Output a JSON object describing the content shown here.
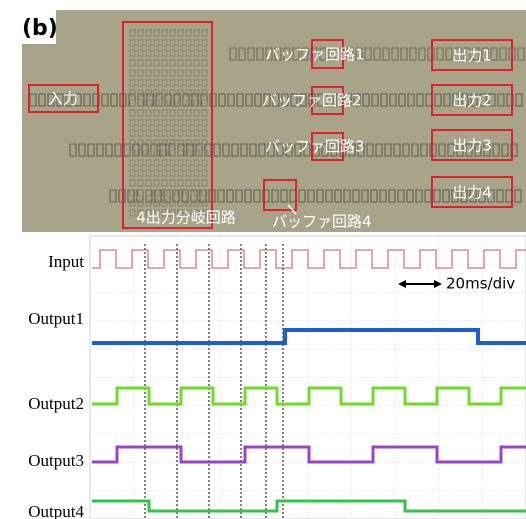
{
  "label": "(b)",
  "photo": {
    "input": "入力",
    "splitter": "4出力分岐回路",
    "buffers": [
      "バッファ回路1",
      "バッファ回路2",
      "バッファ回路3",
      "バッファ回路4"
    ],
    "outputs": [
      "出力1",
      "出力2",
      "出力3",
      "出力4"
    ]
  },
  "scope": {
    "channels": [
      "Input",
      "Output1",
      "Output2",
      "Output3",
      "Output4"
    ],
    "scale": "20ms/div"
  }
}
